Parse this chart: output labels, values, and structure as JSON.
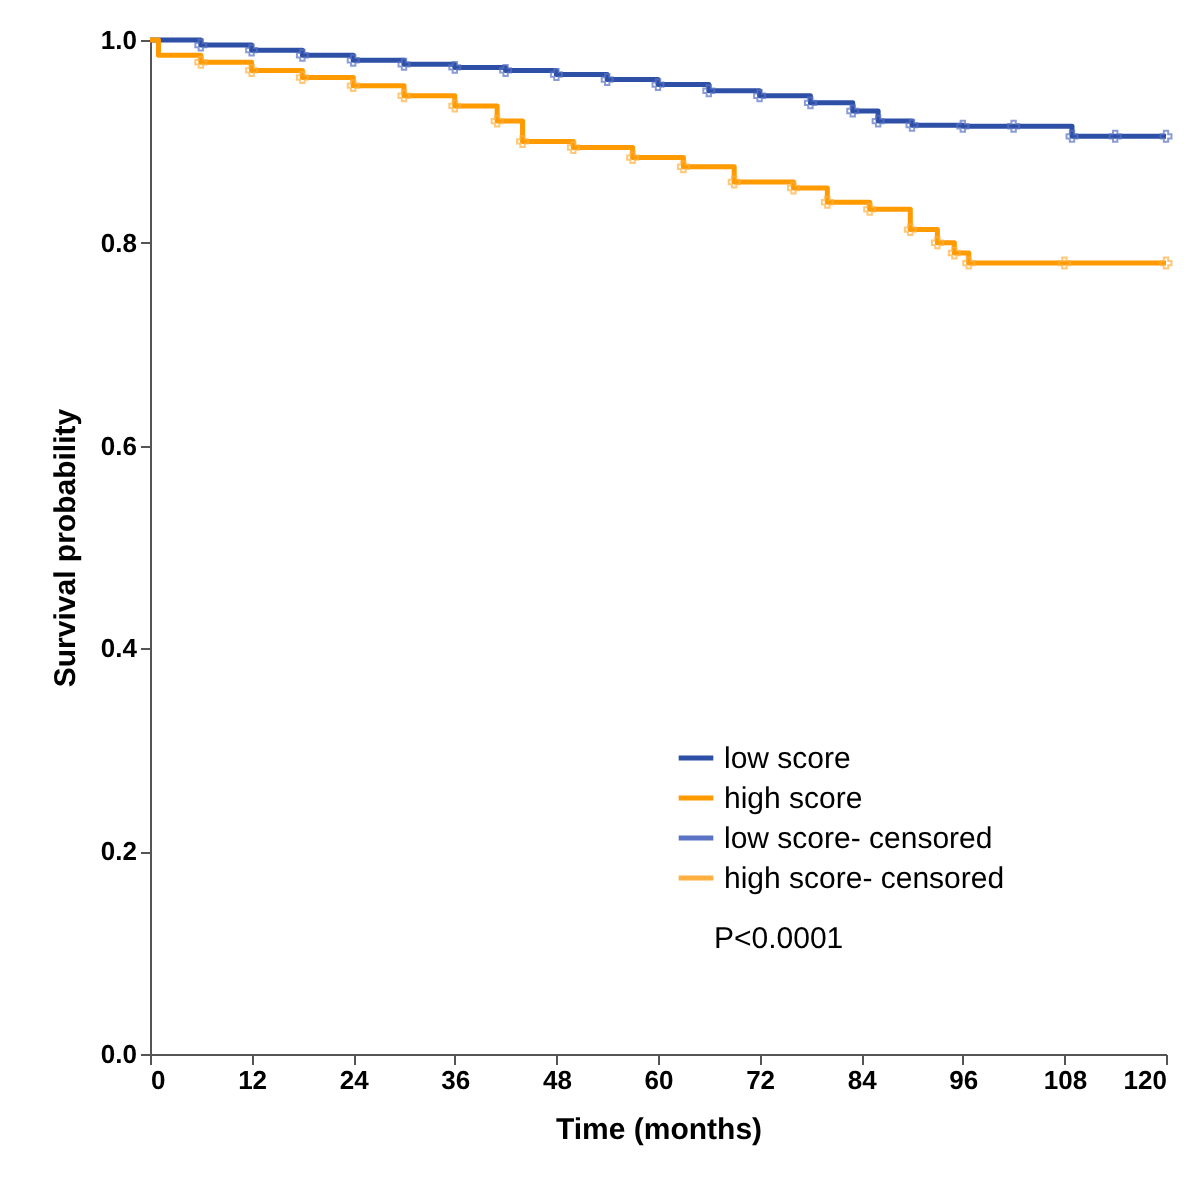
{
  "chart_data": {
    "type": "line",
    "xlabel": "Time (months)",
    "ylabel": "Survival probability",
    "xlim": [
      0,
      120
    ],
    "xticks": [
      0,
      12,
      24,
      36,
      48,
      60,
      72,
      84,
      96,
      108,
      120
    ],
    "ylim": [
      0,
      1
    ],
    "yticks": [
      {
        "value": 0,
        "label": "0.0"
      },
      {
        "value": 0.2,
        "label": "0.2"
      },
      {
        "value": 0.4,
        "label": "0.4"
      },
      {
        "value": 0.6,
        "label": "0.6"
      },
      {
        "value": 0.8,
        "label": "0.8"
      },
      {
        "value": 1,
        "label": "1.0"
      }
    ],
    "grid": false,
    "legend": "bottom right",
    "annotations": [
      "P<0.0001"
    ],
    "series": [
      {
        "name": "low score",
        "type": "step",
        "color": "#2e4fa6",
        "x": [
          0,
          6,
          12,
          18,
          24,
          30,
          36,
          42,
          48,
          54,
          60,
          66,
          72,
          78,
          83,
          86,
          90,
          96,
          102,
          108.9,
          114,
          120
        ],
        "values": [
          1.0,
          0.995,
          0.99,
          0.985,
          0.98,
          0.976,
          0.973,
          0.97,
          0.966,
          0.961,
          0.956,
          0.95,
          0.945,
          0.938,
          0.93,
          0.92,
          0.916,
          0.915,
          0.915,
          0.905,
          0.905,
          0.905
        ]
      },
      {
        "name": "high score",
        "type": "step",
        "color": "#ff9a00",
        "x": [
          0,
          1,
          6,
          12,
          18,
          24,
          30,
          36,
          41,
          44,
          50,
          57,
          63,
          69,
          76,
          80,
          85,
          89.8,
          93,
          95,
          96.7,
          108,
          120
        ],
        "values": [
          1.0,
          0.985,
          0.978,
          0.97,
          0.963,
          0.955,
          0.945,
          0.935,
          0.92,
          0.9,
          0.894,
          0.884,
          0.875,
          0.86,
          0.854,
          0.84,
          0.833,
          0.813,
          0.8,
          0.79,
          0.78,
          0.78,
          0.78
        ]
      },
      {
        "name": "low score- censored",
        "type": "scatter",
        "marker": "cross",
        "color": "#5a73c4",
        "x": [
          6,
          12,
          18,
          24,
          30,
          36,
          42,
          48,
          54,
          60,
          66,
          72,
          78,
          83,
          86,
          90,
          96,
          102,
          108.9,
          114,
          120
        ],
        "values": [
          0.995,
          0.99,
          0.985,
          0.98,
          0.976,
          0.973,
          0.97,
          0.966,
          0.961,
          0.956,
          0.95,
          0.945,
          0.938,
          0.93,
          0.92,
          0.916,
          0.915,
          0.915,
          0.905,
          0.905,
          0.905
        ]
      },
      {
        "name": "high score- censored",
        "type": "scatter",
        "marker": "cross",
        "color": "#ffb040",
        "x": [
          6,
          12,
          18,
          24,
          30,
          36,
          41,
          44,
          50,
          57,
          63,
          69,
          76,
          80,
          85,
          89.8,
          93,
          95,
          96.7,
          108,
          120
        ],
        "values": [
          0.978,
          0.97,
          0.963,
          0.955,
          0.945,
          0.935,
          0.92,
          0.9,
          0.894,
          0.884,
          0.875,
          0.86,
          0.854,
          0.84,
          0.833,
          0.813,
          0.8,
          0.79,
          0.78,
          0.78,
          0.78
        ]
      }
    ]
  }
}
